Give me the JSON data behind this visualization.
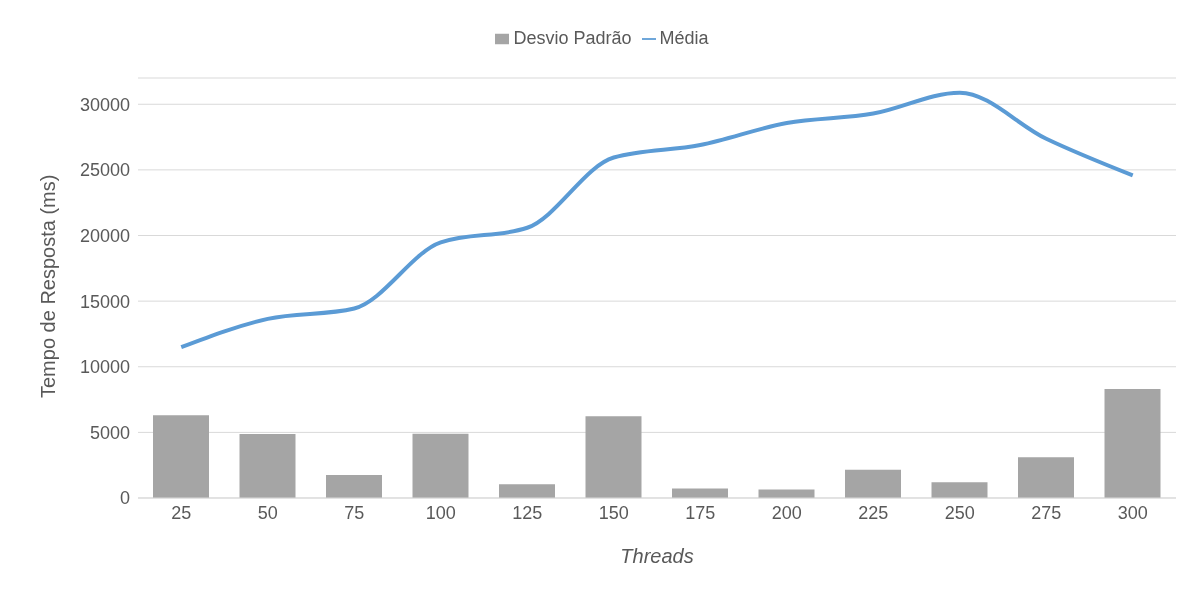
{
  "chart_data": {
    "type": "bar",
    "xlabel": "Threads",
    "ylabel": "Tempo de Resposta (ms)",
    "categories": [
      "25",
      "50",
      "75",
      "100",
      "125",
      "150",
      "175",
      "200",
      "225",
      "250",
      "275",
      "300"
    ],
    "series": [
      {
        "name": "Desvio Padrão",
        "color": "#a5a5a5",
        "values": [
          6300,
          4870,
          1750,
          4900,
          1040,
          6220,
          720,
          640,
          2150,
          1200,
          3110,
          8300
        ]
      },
      {
        "name": "Média",
        "type": "line",
        "color": "#5b9bd5",
        "values": [
          11490,
          13650,
          14440,
          19470,
          20590,
          25940,
          26890,
          28570,
          29290,
          30880,
          27370,
          24580
        ]
      }
    ],
    "ylim": [
      0,
      32000
    ],
    "yticks": [
      0,
      5000,
      10000,
      15000,
      20000,
      25000,
      30000
    ],
    "grid": "y",
    "legend": "top",
    "marker": "none"
  }
}
